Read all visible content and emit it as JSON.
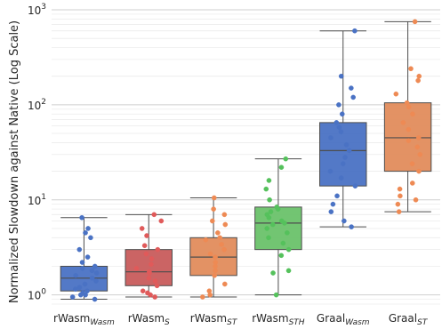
{
  "chart_data": {
    "type": "box",
    "ylabel": "Normalized Slowdown against Native (Log Scale)",
    "yscale": "log",
    "ylim": [
      0.8,
      1000
    ],
    "y_ticks": [
      {
        "value": 1,
        "base": "10",
        "exp": "0"
      },
      {
        "value": 10,
        "base": "10",
        "exp": "1"
      },
      {
        "value": 100,
        "base": "10",
        "exp": "2"
      },
      {
        "value": 1000,
        "base": "10",
        "exp": "3"
      }
    ],
    "grid": true,
    "categories": [
      {
        "main": "rWasm",
        "sub": "Wasm"
      },
      {
        "main": "rWasm",
        "sub": "S"
      },
      {
        "main": "rWasm",
        "sub": "ST"
      },
      {
        "main": "rWasm",
        "sub": "STH"
      },
      {
        "main": "Graal",
        "sub": "Wasm"
      },
      {
        "main": "Graal",
        "sub": "ST"
      }
    ],
    "boxes": [
      {
        "color": "#4a72c4",
        "box": "#4a72c4",
        "min": 0.9,
        "q1": 1.1,
        "median": 1.5,
        "q3": 2.0,
        "max": 6.5,
        "points": [
          0.9,
          0.95,
          1.0,
          1.0,
          1.05,
          1.1,
          1.15,
          1.2,
          1.3,
          1.4,
          1.5,
          1.6,
          1.7,
          1.8,
          1.9,
          2.0,
          2.2,
          2.5,
          3.0,
          4.0,
          4.5,
          5.0,
          6.5
        ]
      },
      {
        "color": "#e05a5a",
        "box": "#c85c5c",
        "min": 0.95,
        "q1": 1.25,
        "median": 1.75,
        "q3": 3.0,
        "max": 7.0,
        "points": [
          0.95,
          1.0,
          1.05,
          1.1,
          1.25,
          1.4,
          1.5,
          1.7,
          1.75,
          1.9,
          2.1,
          2.4,
          2.7,
          3.0,
          3.3,
          4.2,
          5.0,
          6.0,
          7.0
        ]
      },
      {
        "color": "#ee8a54",
        "box": "#e18c5c",
        "min": 0.95,
        "q1": 1.6,
        "median": 2.5,
        "q3": 4.0,
        "max": 10.5,
        "points": [
          0.95,
          1.0,
          1.1,
          1.3,
          1.6,
          1.8,
          2.0,
          2.2,
          2.5,
          2.7,
          3.0,
          3.4,
          3.8,
          4.0,
          4.5,
          5.5,
          6.0,
          7.0,
          8.0,
          10.5
        ]
      },
      {
        "color": "#55c15c",
        "box": "#6ac26a",
        "min": 1.0,
        "q1": 3.0,
        "median": 5.7,
        "q3": 8.4,
        "max": 27.0,
        "points": [
          1.0,
          1.7,
          1.8,
          2.6,
          3.0,
          3.5,
          4.0,
          4.5,
          5.0,
          5.5,
          5.7,
          6.0,
          6.5,
          7.0,
          7.5,
          8.0,
          8.4,
          10.0,
          13.0,
          16.0,
          22.0,
          27.0
        ]
      },
      {
        "color": "#4a72c4",
        "box": "#4a72c4",
        "min": 5.2,
        "q1": 14.0,
        "median": 33.0,
        "q3": 65.0,
        "max": 600.0,
        "points": [
          5.2,
          6.0,
          7.5,
          9.0,
          11.0,
          14.0,
          17.0,
          20.0,
          24.0,
          28.0,
          33.0,
          38.0,
          45.0,
          52.0,
          58.0,
          65.0,
          80.0,
          100.0,
          120.0,
          150.0,
          200.0,
          600.0
        ]
      },
      {
        "color": "#ee8a54",
        "box": "#e18c5c",
        "min": 7.5,
        "q1": 20.0,
        "median": 45.0,
        "q3": 105.0,
        "max": 750.0,
        "points": [
          7.5,
          9.0,
          10.0,
          11.0,
          13.0,
          15.0,
          20.0,
          24.0,
          30.0,
          36.0,
          42.0,
          45.0,
          55.0,
          65.0,
          80.0,
          95.0,
          105.0,
          130.0,
          180.0,
          200.0,
          240.0,
          750.0
        ]
      }
    ]
  }
}
